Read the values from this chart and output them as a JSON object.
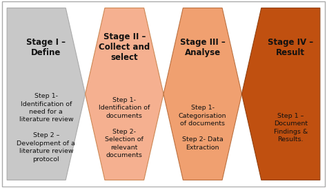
{
  "stages": [
    {
      "title": "Stage I –\nDefine",
      "steps": "Step 1-\nIdentification of\nneed for a\nliterature review\n\nStep 2 –\nDevelopment of a\nliterature review\nprotocol"
    },
    {
      "title": "Stage II –\nCollect and\nselect",
      "steps": "Step 1-\nIdentification of\ndocuments\n\nStep 2-\nSelection of\nrelevant\ndocuments"
    },
    {
      "title": "Stage III –\nAnalyse",
      "steps": "Step 1-\nCategorisation\nof documents\n\nStep 2- Data\nExtraction"
    },
    {
      "title": "Stage IV –\nResult",
      "steps": "Step 1 –\nDocument\nFindings &\nResults."
    }
  ],
  "stage_colors": [
    "#c8c8c8",
    "#f5b090",
    "#f0a070",
    "#c05010"
  ],
  "edge_colors": [
    "#aaaaaa",
    "#cc8855",
    "#bb7040",
    "#904010"
  ],
  "bg_color": "#ffffff",
  "border_color": "#aaaaaa",
  "title_fontsize": 8.5,
  "step_fontsize": 6.8,
  "title_color": "#111111",
  "step_color": "#111111",
  "fig_width": 4.74,
  "fig_height": 2.73,
  "dpi": 100
}
